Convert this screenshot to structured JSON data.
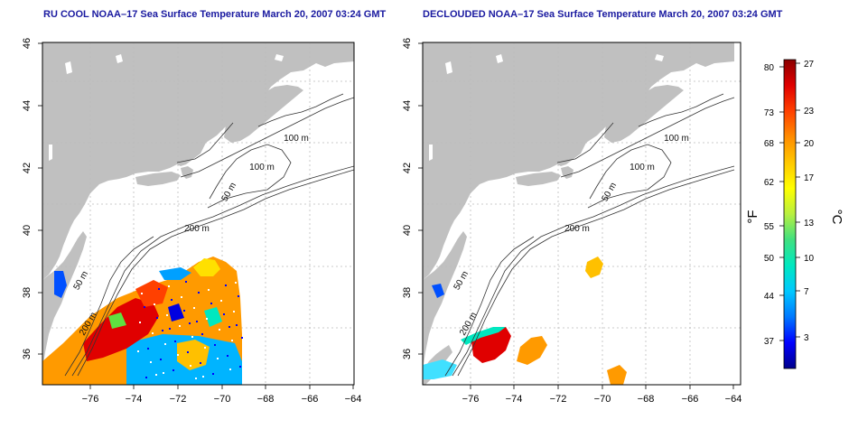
{
  "panels": [
    {
      "title": "RU COOL NOAA–17 Sea Surface Temperature March 20, 2007 03:24 GMT",
      "contour_labels": [
        "100 m",
        "100 m",
        "50 m",
        "200 m",
        "50 m",
        "200 m"
      ],
      "variant": "cloudy"
    },
    {
      "title": "DECLOUDED NOAA–17 Sea Surface Temperature March 20, 2007 03:24 GMT",
      "contour_labels": [
        "100 m",
        "100 m",
        "50 m",
        "200 m",
        "50 m",
        "200 m"
      ],
      "variant": "declouded"
    }
  ],
  "axes": {
    "x_ticks": [
      "−76",
      "−74",
      "−72",
      "−70",
      "−68",
      "−66",
      "−64"
    ],
    "y_ticks": [
      "36",
      "38",
      "40",
      "42",
      "44",
      "46"
    ]
  },
  "colorbar": {
    "f_label": "°F",
    "c_label": "°C",
    "f_ticks": [
      "80",
      "73",
      "68",
      "62",
      "55",
      "50",
      "44",
      "37"
    ],
    "c_ticks": [
      "27",
      "23",
      "20",
      "17",
      "13",
      "10",
      "7",
      "3"
    ],
    "colors": [
      "#00008b",
      "#0000ff",
      "#0078ff",
      "#00c8ff",
      "#00e8c0",
      "#40e080",
      "#b8f040",
      "#ffff00",
      "#ffc800",
      "#ff8c00",
      "#ff4000",
      "#e00000",
      "#8b0000"
    ]
  },
  "colors": {
    "land": "#c0c0c0",
    "contour": "#333333",
    "grid": "#bbbbbb",
    "title": "#1a1aa0"
  }
}
